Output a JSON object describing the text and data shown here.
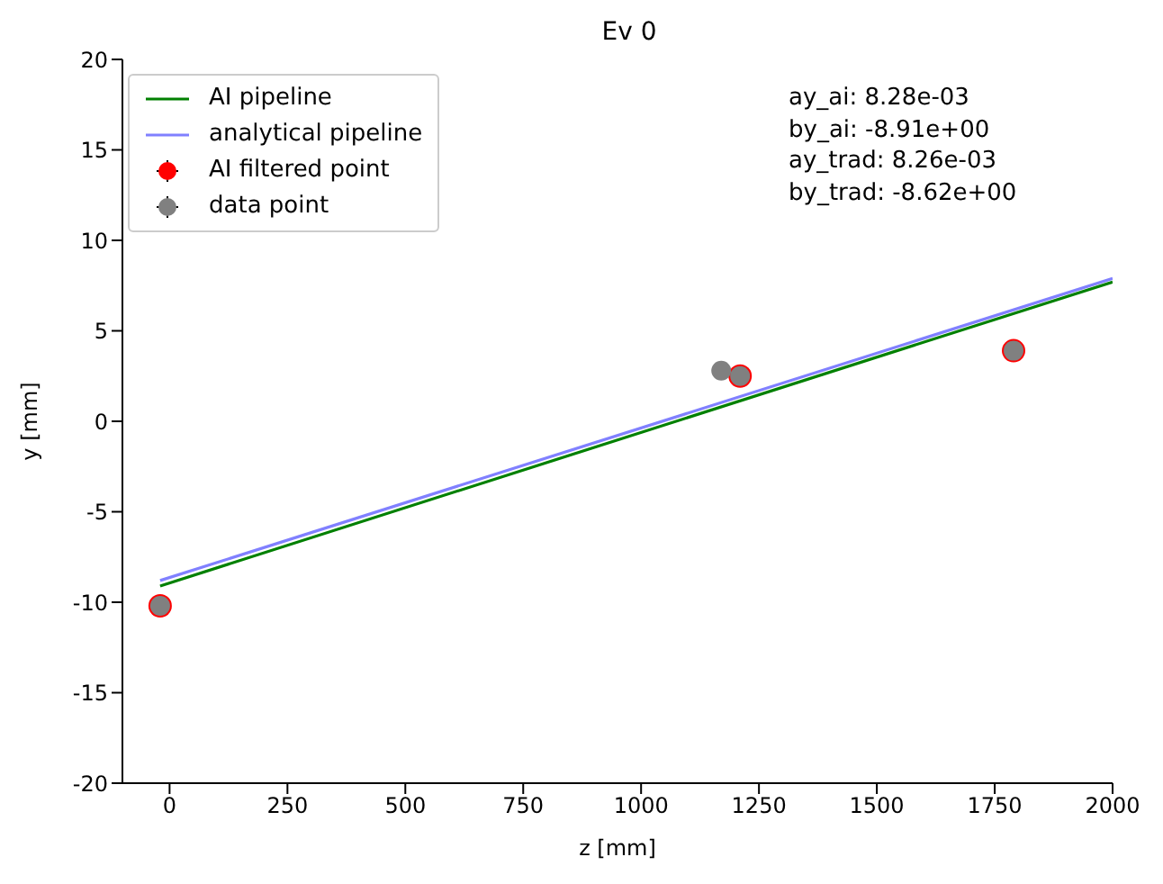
{
  "chart_data": {
    "type": "scatter",
    "title": "Ev 0",
    "xlabel": "z [mm]",
    "ylabel": "y [mm]",
    "annotations": [
      "ay_ai: 8.28e-03",
      "by_ai: -8.91e+00",
      "ay_trad: 8.26e-03",
      "by_trad: -8.62e+00"
    ],
    "series": [
      {
        "name": "AI pipeline",
        "type": "line",
        "color": "#008000",
        "x": [
          -20,
          2000
        ],
        "values": [
          -9.1,
          7.7
        ],
        "marker": "none"
      },
      {
        "name": "analytical pipeline",
        "type": "line",
        "color": "#8080ff",
        "x": [
          -20,
          2000
        ],
        "values": [
          -8.8,
          7.9
        ],
        "marker": "none"
      },
      {
        "name": "AI filtered point",
        "type": "scatter",
        "color": "#ff0000",
        "x": [
          -20,
          1210,
          1790
        ],
        "values": [
          -10.2,
          2.5,
          3.9
        ],
        "marker": "circle"
      },
      {
        "name": "data point",
        "type": "scatter",
        "color": "#808080",
        "x": [
          -20,
          1170,
          1210,
          1790
        ],
        "values": [
          -10.2,
          2.8,
          2.5,
          3.9
        ],
        "marker": "circle"
      }
    ],
    "xlim": [
      -100,
      2000
    ],
    "xticks": [
      0,
      250,
      500,
      750,
      1000,
      1250,
      1500,
      1750,
      2000
    ],
    "ylim": [
      -20,
      20
    ],
    "yticks": [
      -20,
      -15,
      -10,
      -5,
      0,
      5,
      10,
      15,
      20
    ],
    "grid": false,
    "legend": "top left"
  }
}
